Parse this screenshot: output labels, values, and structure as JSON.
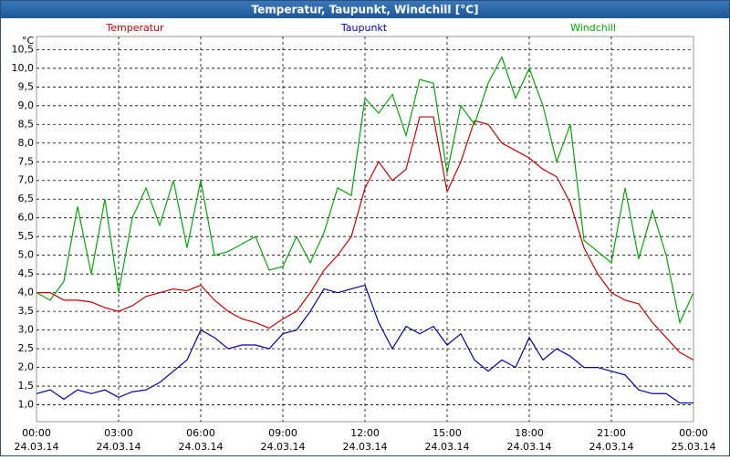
{
  "chart_data": {
    "type": "line",
    "title": "Temperatur, Taupunkt, Windchill [°C]",
    "unit": "°C",
    "x": [
      0,
      0.5,
      1,
      1.5,
      2,
      2.5,
      3,
      3.5,
      4,
      4.5,
      5,
      5.5,
      6,
      6.5,
      7,
      7.5,
      8,
      8.5,
      9,
      9.5,
      10,
      10.5,
      11,
      11.5,
      12,
      12.5,
      13,
      13.5,
      14,
      14.5,
      15,
      15.5,
      16,
      16.5,
      17,
      17.5,
      18,
      18.5,
      19,
      19.5,
      20,
      20.5,
      21,
      21.5,
      22,
      22.5,
      23,
      23.5,
      24
    ],
    "xlim": [
      0,
      24
    ],
    "xticks": [
      {
        "value": 0,
        "label": "00:00",
        "date": "24.03.14"
      },
      {
        "value": 3,
        "label": "03:00",
        "date": "24.03.14"
      },
      {
        "value": 6,
        "label": "06:00",
        "date": "24.03.14"
      },
      {
        "value": 9,
        "label": "09:00",
        "date": "24.03.14"
      },
      {
        "value": 12,
        "label": "12:00",
        "date": "24.03.14"
      },
      {
        "value": 15,
        "label": "15:00",
        "date": "24.03.14"
      },
      {
        "value": 18,
        "label": "18:00",
        "date": "24.03.14"
      },
      {
        "value": 21,
        "label": "21:00",
        "date": "24.03.14"
      },
      {
        "value": 24,
        "label": "00:00",
        "date": "25.03.14"
      }
    ],
    "ylim": [
      0.55,
      10.85
    ],
    "yticks": [
      {
        "value": 1,
        "label": "1,0"
      },
      {
        "value": 1.5,
        "label": "1,5"
      },
      {
        "value": 2,
        "label": "2,0"
      },
      {
        "value": 2.5,
        "label": "2,5"
      },
      {
        "value": 3,
        "label": "3,0"
      },
      {
        "value": 3.5,
        "label": "3,5"
      },
      {
        "value": 4,
        "label": "4,0"
      },
      {
        "value": 4.5,
        "label": "4,5"
      },
      {
        "value": 5,
        "label": "5,0"
      },
      {
        "value": 5.5,
        "label": "5,5"
      },
      {
        "value": 6,
        "label": "6,0"
      },
      {
        "value": 6.5,
        "label": "6,5"
      },
      {
        "value": 7,
        "label": "7,0"
      },
      {
        "value": 7.5,
        "label": "7,5"
      },
      {
        "value": 8,
        "label": "8,0"
      },
      {
        "value": 8.5,
        "label": "8,5"
      },
      {
        "value": 9,
        "label": "9,0"
      },
      {
        "value": 9.5,
        "label": "9,5"
      },
      {
        "value": 10,
        "label": "10,0"
      },
      {
        "value": 10.5,
        "label": "10,5"
      }
    ],
    "grid": true,
    "series": [
      {
        "name": "Temperatur",
        "color": "#cc0000",
        "values": [
          4.0,
          4.0,
          3.8,
          3.8,
          3.75,
          3.6,
          3.5,
          3.65,
          3.9,
          4.0,
          4.1,
          4.05,
          4.2,
          3.8,
          3.5,
          3.3,
          3.2,
          3.05,
          3.3,
          3.5,
          4.0,
          4.6,
          5.0,
          5.5,
          6.8,
          7.5,
          7.0,
          7.3,
          8.7,
          8.7,
          6.7,
          7.5,
          8.6,
          8.5,
          8.0,
          7.8,
          7.6,
          7.3,
          7.1,
          6.4,
          5.2,
          4.5,
          4.0,
          3.8,
          3.7,
          3.2,
          2.8,
          2.4,
          2.2
        ]
      },
      {
        "name": "Taupunkt",
        "color": "#0000aa",
        "values": [
          1.3,
          1.4,
          1.15,
          1.4,
          1.3,
          1.4,
          1.2,
          1.35,
          1.4,
          1.6,
          1.9,
          2.2,
          3.0,
          2.8,
          2.5,
          2.6,
          2.6,
          2.5,
          2.9,
          3.0,
          3.5,
          4.1,
          4.0,
          4.1,
          4.2,
          3.2,
          2.5,
          3.1,
          2.9,
          3.1,
          2.6,
          2.9,
          2.2,
          1.9,
          2.2,
          2.0,
          2.8,
          2.2,
          2.5,
          2.3,
          2.0,
          2.0,
          1.9,
          1.8,
          1.4,
          1.3,
          1.3,
          1.05,
          1.05
        ]
      },
      {
        "name": "Windchill",
        "color": "#00aa00",
        "values": [
          4.0,
          3.8,
          4.3,
          6.3,
          4.5,
          6.5,
          4.0,
          6.0,
          6.8,
          5.8,
          7.0,
          5.2,
          7.0,
          5.0,
          5.1,
          5.3,
          5.5,
          4.6,
          4.7,
          5.5,
          4.8,
          5.6,
          6.8,
          6.6,
          9.2,
          8.8,
          9.3,
          8.2,
          9.7,
          9.6,
          7.2,
          9.0,
          8.5,
          9.6,
          10.3,
          9.2,
          10.0,
          9.0,
          7.5,
          8.5,
          5.4,
          5.1,
          4.8,
          6.8,
          4.9,
          6.2,
          5.0,
          3.2,
          4.0
        ]
      }
    ]
  }
}
